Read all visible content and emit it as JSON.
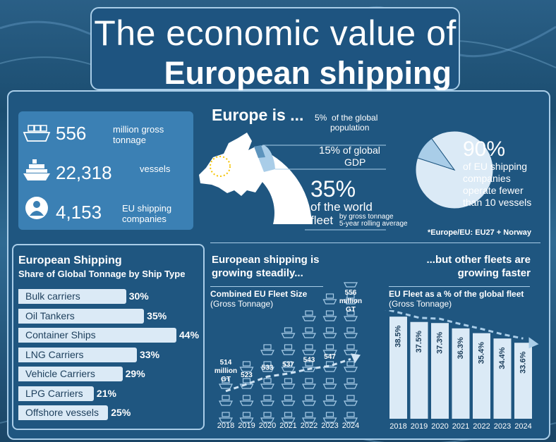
{
  "header": {
    "title_line1": "The economic value of",
    "title_line2": "European shipping"
  },
  "stats": [
    {
      "icon": "cargo-ship-icon",
      "value": "556",
      "label_l1": "million gross",
      "label_l2": "tonnage"
    },
    {
      "icon": "cruise-ship-icon",
      "value": "22,318",
      "label_l1": "vessels",
      "label_l2": ""
    },
    {
      "icon": "person-icon",
      "value": "4,153",
      "label_l1": "EU shipping",
      "label_l2": "companies"
    }
  ],
  "europe": {
    "heading": "Europe is ...",
    "facts": [
      {
        "pct": "5%",
        "text_l1": "of the global",
        "text_l2": "population"
      },
      {
        "pct": "15%",
        "text_l1": "of global",
        "text_l2": "GDP"
      },
      {
        "pct": "35%",
        "text_l1": "of the world",
        "text_l2": "fleet",
        "note_l1": "by gross tonnage",
        "note_l2": "5-year rolling average"
      }
    ],
    "footnote": "*Europe/EU: EU27 + Norway"
  },
  "pie": {
    "pct": "90%",
    "text": [
      "of EU shipping",
      "companies",
      "operate fewer",
      "than 10 vessels"
    ]
  },
  "ship_types": {
    "title": "European Shipping",
    "subtitle": "Share of Global Tonnage by Ship Type"
  },
  "growth": {
    "heading_l1": "European shipping is",
    "heading_l2": "growing steadily...",
    "faster_l1": "...but other fleets are",
    "faster_l2": "growing faster"
  },
  "chart_data": [
    {
      "type": "bar",
      "title": "European Shipping",
      "subtitle": "Share of Global Tonnage by Ship Type",
      "categories": [
        "Bulk carriers",
        "Oil Tankers",
        "Container Ships",
        "LNG Carriers",
        "Vehicle Carriers",
        "LPG Carriers",
        "Offshore vessels"
      ],
      "values": [
        30,
        35,
        44,
        33,
        29,
        21,
        25
      ],
      "value_labels": [
        "30%",
        "35%",
        "44%",
        "33%",
        "29%",
        "21%",
        "25%"
      ],
      "xlim": [
        0,
        44
      ]
    },
    {
      "type": "line",
      "title": "Combined EU Fleet Size",
      "subtitle": "(Gross Tonnage)",
      "x": [
        "2018",
        "2019",
        "2020",
        "2021",
        "2022",
        "2023",
        "2024"
      ],
      "values": [
        514,
        523,
        533,
        537,
        543,
        547,
        556
      ],
      "value_labels": [
        "514 million GT",
        "523",
        "533",
        "537",
        "543",
        "547",
        "556 million GT"
      ],
      "ylim": [
        500,
        560
      ]
    },
    {
      "type": "bar",
      "title": "EU Fleet as a % of the global fleet",
      "subtitle": "(Gross Tonnage)",
      "categories": [
        "2018",
        "2019",
        "2020",
        "2021",
        "2022",
        "2023",
        "2024"
      ],
      "values": [
        38.5,
        37.5,
        37.3,
        36.3,
        35.4,
        34.4,
        33.6
      ],
      "value_labels": [
        "38.5%",
        "37.5%",
        "37.3%",
        "36.3%",
        "35.4%",
        "34.4%",
        "33.6%"
      ],
      "ylim": [
        0,
        40
      ]
    },
    {
      "type": "pie",
      "values": [
        90,
        10
      ],
      "value_labels": [
        "90%",
        ""
      ],
      "colors": [
        "#dbeaf6",
        "#a9cde8"
      ]
    }
  ],
  "colors": {
    "panel": "#1f5680",
    "accent": "#3b80b4",
    "light": "#dbeaf6",
    "border": "#a9cde8"
  }
}
